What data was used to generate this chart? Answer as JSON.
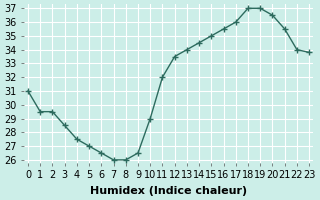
{
  "x": [
    0,
    1,
    2,
    3,
    4,
    5,
    6,
    7,
    8,
    9,
    10,
    11,
    12,
    13,
    14,
    15,
    16,
    17,
    18,
    19,
    20,
    21,
    22,
    23
  ],
  "y": [
    31,
    29.5,
    29.5,
    28.5,
    27.5,
    27,
    26.5,
    26,
    26,
    26.5,
    29,
    32,
    33.5,
    34,
    34.5,
    35,
    35.5,
    36,
    37,
    37,
    36.5,
    35.5,
    34,
    33.8
  ],
  "xlabel": "Humidex (Indice chaleur)",
  "ylabel": "",
  "ylim": [
    26,
    37
  ],
  "xlim": [
    0,
    23
  ],
  "yticks": [
    26,
    27,
    28,
    29,
    30,
    31,
    32,
    33,
    34,
    35,
    36,
    37
  ],
  "xticks": [
    0,
    1,
    2,
    3,
    4,
    5,
    6,
    7,
    8,
    9,
    10,
    11,
    12,
    13,
    14,
    15,
    16,
    17,
    18,
    19,
    20,
    21,
    22,
    23
  ],
  "line_color": "#2d6b5e",
  "marker": "+",
  "bg_color": "#cceee8",
  "grid_color": "#ffffff",
  "tick_label_fontsize": 7,
  "xlabel_fontsize": 8
}
